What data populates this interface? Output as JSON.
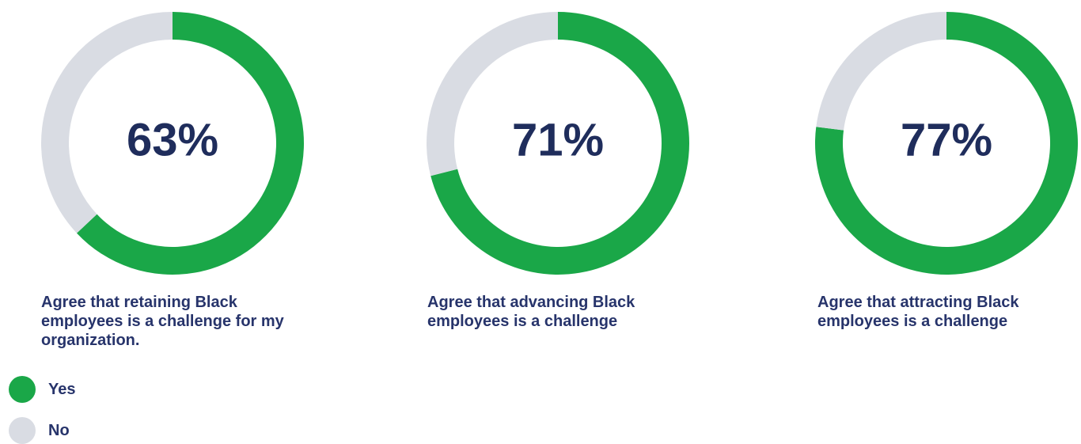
{
  "chart_data": [
    {
      "type": "donut",
      "title": "Agree that retaining Black employees is a challenge for my organization.",
      "categories": [
        "Yes",
        "No"
      ],
      "values": [
        63,
        37
      ],
      "value_labels": [
        "63%",
        null
      ],
      "colors": [
        "#1aa748",
        "#d9dce3"
      ]
    },
    {
      "type": "donut",
      "title": "Agree that advancing Black employees is a challenge",
      "categories": [
        "Yes",
        "No"
      ],
      "values": [
        71,
        29
      ],
      "value_labels": [
        "71%",
        null
      ],
      "colors": [
        "#1aa748",
        "#d9dce3"
      ]
    },
    {
      "type": "donut",
      "title": "Agree that attracting Black employees is a challenge",
      "categories": [
        "Yes",
        "No"
      ],
      "values": [
        77,
        23
      ],
      "value_labels": [
        "77%",
        null
      ],
      "colors": [
        "#1aa748",
        "#d9dce3"
      ]
    }
  ]
}
